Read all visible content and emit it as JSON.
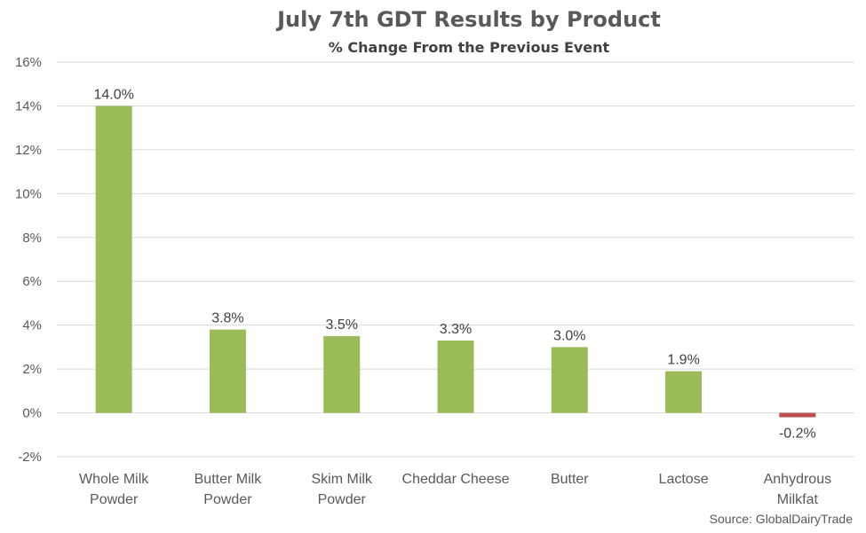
{
  "chart_data": {
    "type": "bar",
    "title": "July 7th GDT Results by Product",
    "subtitle": "% Change From the Previous Event",
    "categories": [
      [
        "Whole Milk",
        "Powder"
      ],
      [
        "Butter Milk",
        "Powder"
      ],
      [
        "Skim Milk",
        "Powder"
      ],
      [
        "Cheddar Cheese"
      ],
      [
        "Butter"
      ],
      [
        "Lactose"
      ],
      [
        "Anhydrous",
        "Milkfat"
      ]
    ],
    "values": [
      14.0,
      3.8,
      3.5,
      3.3,
      3.0,
      1.9,
      -0.2
    ],
    "data_labels": [
      "14.0%",
      "3.8%",
      "3.5%",
      "3.3%",
      "3.0%",
      "1.9%",
      "-0.2%"
    ],
    "ylim": [
      -2,
      16
    ],
    "yticks": [
      -2,
      0,
      2,
      4,
      6,
      8,
      10,
      12,
      14,
      16
    ],
    "ytick_labels": [
      "-2%",
      "0%",
      "2%",
      "4%",
      "6%",
      "8%",
      "10%",
      "12%",
      "14%",
      "16%"
    ],
    "grid": true,
    "colors": {
      "positive": "#9bbb59",
      "negative": "#c0504d"
    },
    "source": "Source: GlobalDairyTrade"
  }
}
